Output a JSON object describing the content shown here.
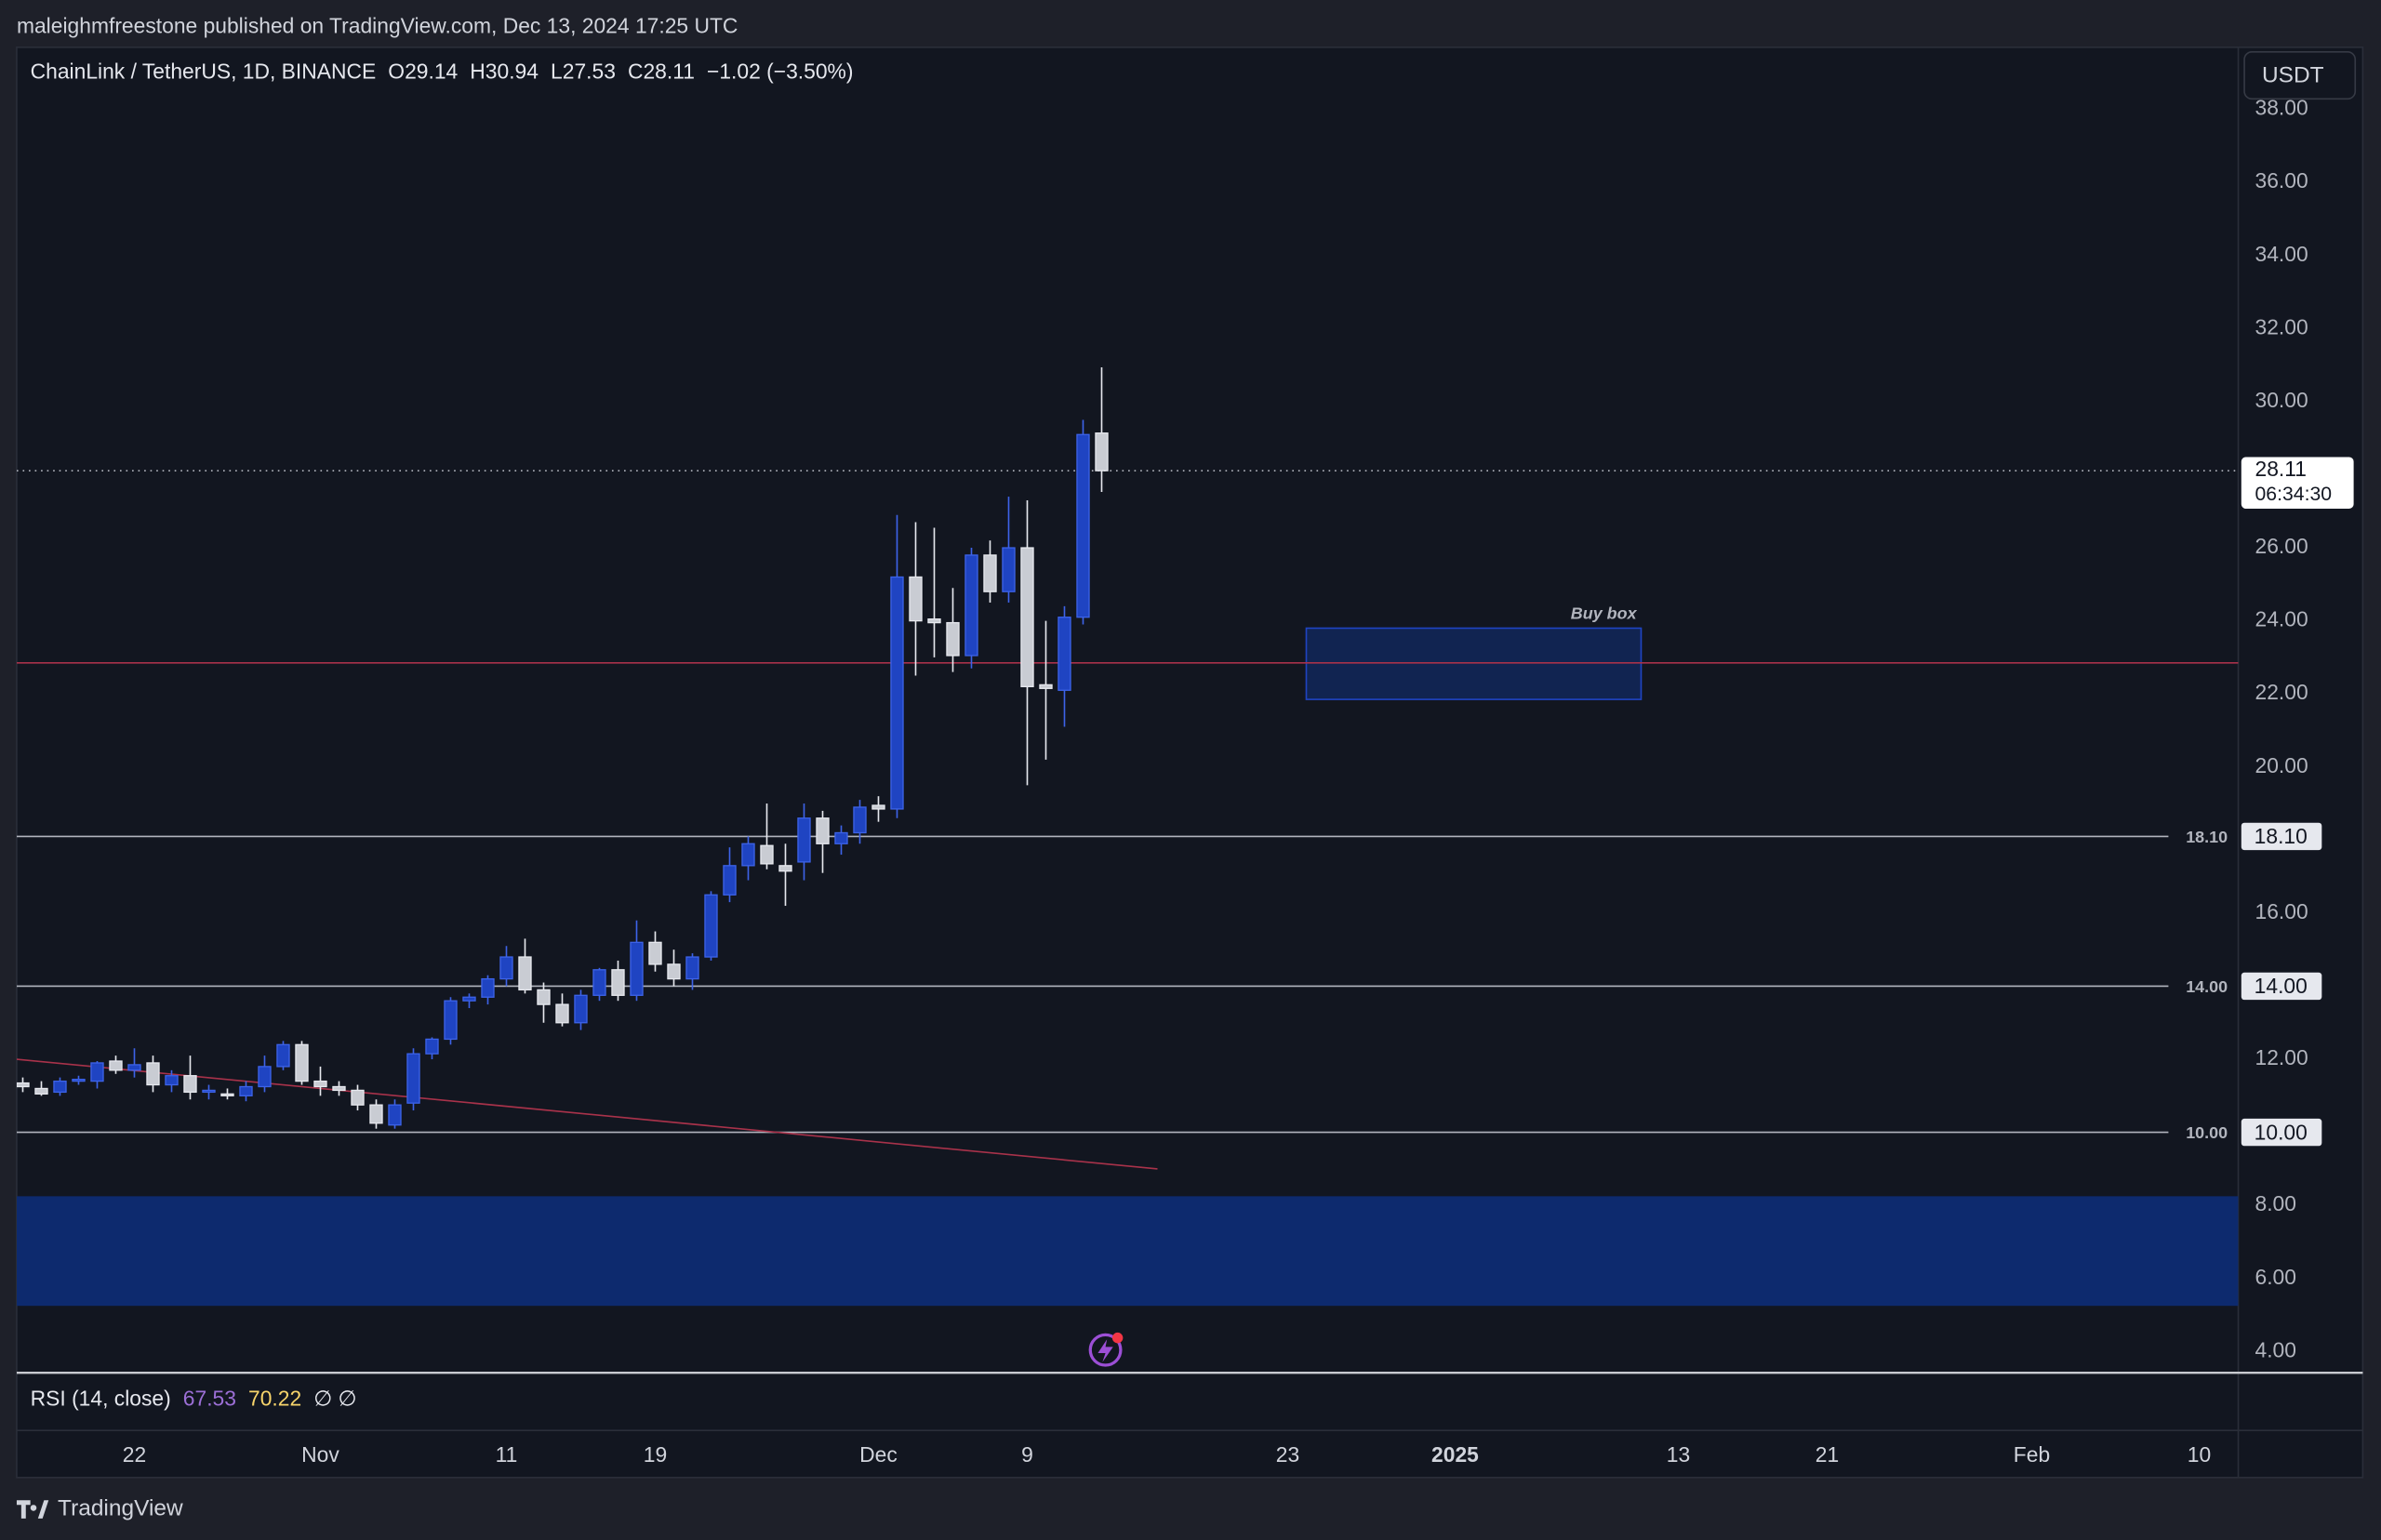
{
  "header": {
    "publisher": "maleighmfreestone published on TradingView.com, Dec 13, 2024 17:25 UTC"
  },
  "footer": {
    "brand": "TradingView"
  },
  "chart_data": {
    "type": "candlestick",
    "legend": {
      "symbol": "ChainLink / TetherUS, 1D, BINANCE",
      "open": "O29.14",
      "high": "H30.94",
      "low": "L27.53",
      "close": "C28.11",
      "change": "−1.02 (−3.50%)"
    },
    "currency": "USDT",
    "x": [
      "2024-10-16",
      "2024-10-17",
      "2024-10-18",
      "2024-10-19",
      "2024-10-20",
      "2024-10-21",
      "2024-10-22",
      "2024-10-23",
      "2024-10-24",
      "2024-10-25",
      "2024-10-26",
      "2024-10-27",
      "2024-10-28",
      "2024-10-29",
      "2024-10-30",
      "2024-10-31",
      "2024-11-01",
      "2024-11-02",
      "2024-11-03",
      "2024-11-04",
      "2024-11-05",
      "2024-11-06",
      "2024-11-07",
      "2024-11-08",
      "2024-11-09",
      "2024-11-10",
      "2024-11-11",
      "2024-11-12",
      "2024-11-13",
      "2024-11-14",
      "2024-11-15",
      "2024-11-16",
      "2024-11-17",
      "2024-11-18",
      "2024-11-19",
      "2024-11-20",
      "2024-11-21",
      "2024-11-22",
      "2024-11-23",
      "2024-11-24",
      "2024-11-25",
      "2024-11-26",
      "2024-11-27",
      "2024-11-28",
      "2024-11-29",
      "2024-11-30",
      "2024-12-01",
      "2024-12-02",
      "2024-12-03",
      "2024-12-04",
      "2024-12-05",
      "2024-12-06",
      "2024-12-07",
      "2024-12-08",
      "2024-12-09",
      "2024-12-10",
      "2024-12-11",
      "2024-12-12",
      "2024-12-13"
    ],
    "open": [
      11.35,
      11.2,
      11.1,
      11.4,
      11.4,
      11.95,
      11.7,
      11.9,
      11.3,
      11.55,
      11.1,
      11.05,
      11.0,
      11.25,
      11.8,
      12.4,
      11.4,
      11.25,
      11.15,
      10.75,
      10.2,
      10.8,
      12.15,
      12.55,
      13.6,
      13.7,
      14.2,
      14.8,
      13.9,
      13.5,
      13.0,
      13.75,
      14.45,
      13.75,
      15.2,
      14.6,
      14.2,
      14.8,
      16.5,
      17.3,
      17.85,
      17.3,
      17.4,
      18.6,
      17.9,
      18.2,
      18.95,
      18.85,
      25.2,
      24.05,
      23.95,
      23.05,
      25.8,
      24.8,
      26.0,
      22.25,
      22.1,
      24.1,
      29.14
    ],
    "high": [
      11.5,
      11.4,
      11.5,
      11.55,
      11.95,
      12.1,
      12.3,
      12.1,
      11.7,
      12.1,
      11.3,
      11.2,
      11.4,
      12.1,
      12.5,
      12.5,
      11.8,
      11.4,
      11.3,
      10.9,
      10.9,
      12.3,
      12.6,
      13.7,
      13.8,
      14.3,
      15.1,
      15.3,
      14.1,
      13.8,
      13.9,
      14.5,
      14.7,
      15.8,
      15.5,
      15.0,
      14.9,
      16.6,
      17.8,
      18.1,
      19.0,
      17.9,
      19.0,
      18.8,
      18.4,
      19.1,
      19.2,
      26.9,
      26.7,
      26.55,
      24.9,
      26.0,
      26.2,
      27.4,
      27.3,
      24.0,
      24.4,
      29.5,
      30.94
    ],
    "low": [
      11.1,
      11.0,
      11.0,
      11.3,
      11.2,
      11.6,
      11.5,
      11.1,
      11.1,
      10.9,
      10.9,
      10.9,
      10.85,
      11.1,
      11.7,
      11.3,
      11.0,
      11.0,
      10.6,
      10.1,
      10.1,
      10.6,
      12.0,
      12.4,
      13.4,
      13.5,
      14.0,
      13.8,
      13.0,
      12.9,
      12.8,
      13.6,
      13.6,
      13.6,
      14.4,
      14.0,
      13.9,
      14.7,
      16.3,
      16.9,
      17.2,
      16.2,
      16.9,
      17.1,
      17.6,
      17.9,
      18.5,
      18.6,
      22.5,
      23.0,
      22.6,
      22.7,
      24.5,
      24.5,
      19.5,
      20.2,
      21.1,
      23.9,
      27.53
    ],
    "close": [
      11.25,
      11.05,
      11.4,
      11.45,
      11.9,
      11.7,
      11.85,
      11.3,
      11.55,
      11.1,
      11.15,
      11.0,
      11.25,
      11.8,
      12.4,
      11.4,
      11.25,
      11.15,
      10.75,
      10.25,
      10.75,
      12.15,
      12.55,
      13.6,
      13.7,
      14.2,
      14.8,
      13.9,
      13.5,
      13.0,
      13.75,
      14.45,
      13.75,
      15.2,
      14.6,
      14.2,
      14.8,
      16.5,
      17.3,
      17.9,
      17.35,
      17.15,
      18.6,
      17.9,
      18.2,
      18.9,
      18.85,
      25.2,
      24.0,
      23.95,
      23.05,
      25.8,
      24.8,
      26.0,
      22.2,
      22.15,
      24.1,
      29.1,
      28.11
    ],
    "up_color": "#1f44c2",
    "down_color": "#c9ccd3",
    "xlim": [
      "2024-10-16",
      "2025-02-12"
    ],
    "xticks": [
      {
        "value": "2024-10-22",
        "label": "22"
      },
      {
        "value": "2024-11-01",
        "label": "Nov"
      },
      {
        "value": "2024-11-11",
        "label": "11"
      },
      {
        "value": "2024-11-19",
        "label": "19"
      },
      {
        "value": "2024-12-01",
        "label": "Dec"
      },
      {
        "value": "2024-12-09",
        "label": "9"
      },
      {
        "value": "2024-12-23",
        "label": "23"
      },
      {
        "value": "2025-01-01",
        "label": "2025"
      },
      {
        "value": "2025-01-13",
        "label": "13"
      },
      {
        "value": "2025-01-21",
        "label": "21"
      },
      {
        "value": "2025-02-01",
        "label": "Feb"
      },
      {
        "value": "2025-02-10",
        "label": "10"
      }
    ],
    "ylim": [
      3.46,
      39.7
    ],
    "yticks": [
      {
        "value": 38,
        "label": "38.00"
      },
      {
        "value": 36,
        "label": "36.00"
      },
      {
        "value": 34,
        "label": "34.00"
      },
      {
        "value": 32,
        "label": "32.00"
      },
      {
        "value": 30,
        "label": "30.00"
      },
      {
        "value": 26,
        "label": "26.00"
      },
      {
        "value": 24,
        "label": "24.00"
      },
      {
        "value": 22,
        "label": "22.00"
      },
      {
        "value": 20,
        "label": "20.00"
      },
      {
        "value": 16,
        "label": "16.00"
      },
      {
        "value": 12,
        "label": "12.00"
      },
      {
        "value": 8,
        "label": "8.00"
      },
      {
        "value": 6,
        "label": "6.00"
      },
      {
        "value": 4,
        "label": "4.00"
      }
    ],
    "levels": [
      {
        "value": 18.1,
        "label": "18.10"
      },
      {
        "value": 14,
        "label": "14.00"
      },
      {
        "value": 10,
        "label": "10.00"
      }
    ],
    "last_price": 28.11,
    "countdown": "06:34:30",
    "red_level": 22.85,
    "trendline": {
      "x": [
        "2024-10-16",
        "2024-12-16"
      ],
      "y": [
        12.0,
        9.0
      ]
    },
    "buy_box": {
      "x": [
        "2024-12-24",
        "2025-01-11"
      ],
      "y": [
        21.85,
        23.8
      ],
      "label": "Buy box"
    },
    "zone": {
      "y": [
        5.25,
        8.25
      ]
    },
    "rsi": {
      "title": "RSI (14, close)",
      "rsi": "67.53",
      "rsi_ma": "70.22",
      "extra": "∅ ∅"
    }
  }
}
